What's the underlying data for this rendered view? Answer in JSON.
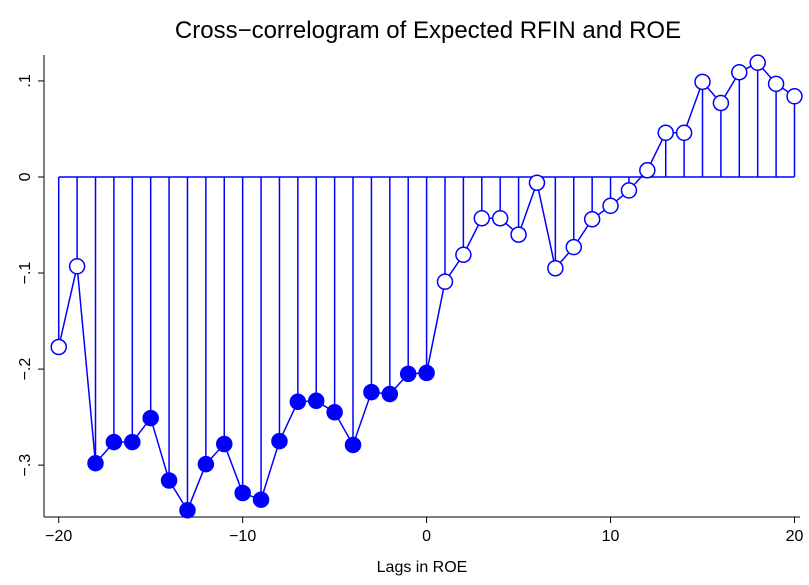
{
  "chart_data": {
    "type": "stem",
    "title": "Cross−correlogram of Expected RFIN and ROE",
    "x_label": "Lags in ROE",
    "x": [
      -20,
      -19,
      -18,
      -17,
      -16,
      -15,
      -14,
      -13,
      -12,
      -11,
      -10,
      -9,
      -8,
      -7,
      -6,
      -5,
      -4,
      -3,
      -2,
      -1,
      0,
      1,
      2,
      3,
      4,
      5,
      6,
      7,
      8,
      9,
      10,
      11,
      12,
      13,
      14,
      15,
      16,
      17,
      18,
      19,
      20
    ],
    "values": [
      -0.177,
      -0.093,
      -0.298,
      -0.276,
      -0.276,
      -0.251,
      -0.316,
      -0.347,
      -0.299,
      -0.278,
      -0.329,
      -0.336,
      -0.275,
      -0.234,
      -0.233,
      -0.245,
      -0.279,
      -0.224,
      -0.226,
      -0.205,
      -0.204,
      -0.109,
      -0.081,
      -0.043,
      -0.043,
      -0.06,
      -0.006,
      -0.095,
      -0.073,
      -0.044,
      -0.03,
      -0.014,
      0.007,
      0.046,
      0.046,
      0.099,
      0.077,
      0.109,
      0.119,
      0.097,
      0.084
    ],
    "filled": [
      false,
      false,
      true,
      true,
      true,
      true,
      true,
      true,
      true,
      true,
      true,
      true,
      true,
      true,
      true,
      true,
      true,
      true,
      true,
      true,
      true,
      false,
      false,
      false,
      false,
      false,
      false,
      false,
      false,
      false,
      false,
      false,
      false,
      false,
      false,
      false,
      false,
      false,
      false,
      false,
      false
    ],
    "color": "#0000ff",
    "xlim": [
      -20.8,
      20.3
    ],
    "ylim": [
      -0.354,
      0.127
    ],
    "xticks": [
      {
        "value": -20,
        "label": "−20"
      },
      {
        "value": -10,
        "label": "−10"
      },
      0,
      10,
      20
    ],
    "yticks": [
      {
        "value": -0.3,
        "label": "−.3"
      },
      {
        "value": -0.2,
        "label": "−.2"
      },
      {
        "value": -0.1,
        "label": "−.1"
      },
      0,
      {
        "value": 0.1,
        "label": ".1"
      }
    ]
  }
}
